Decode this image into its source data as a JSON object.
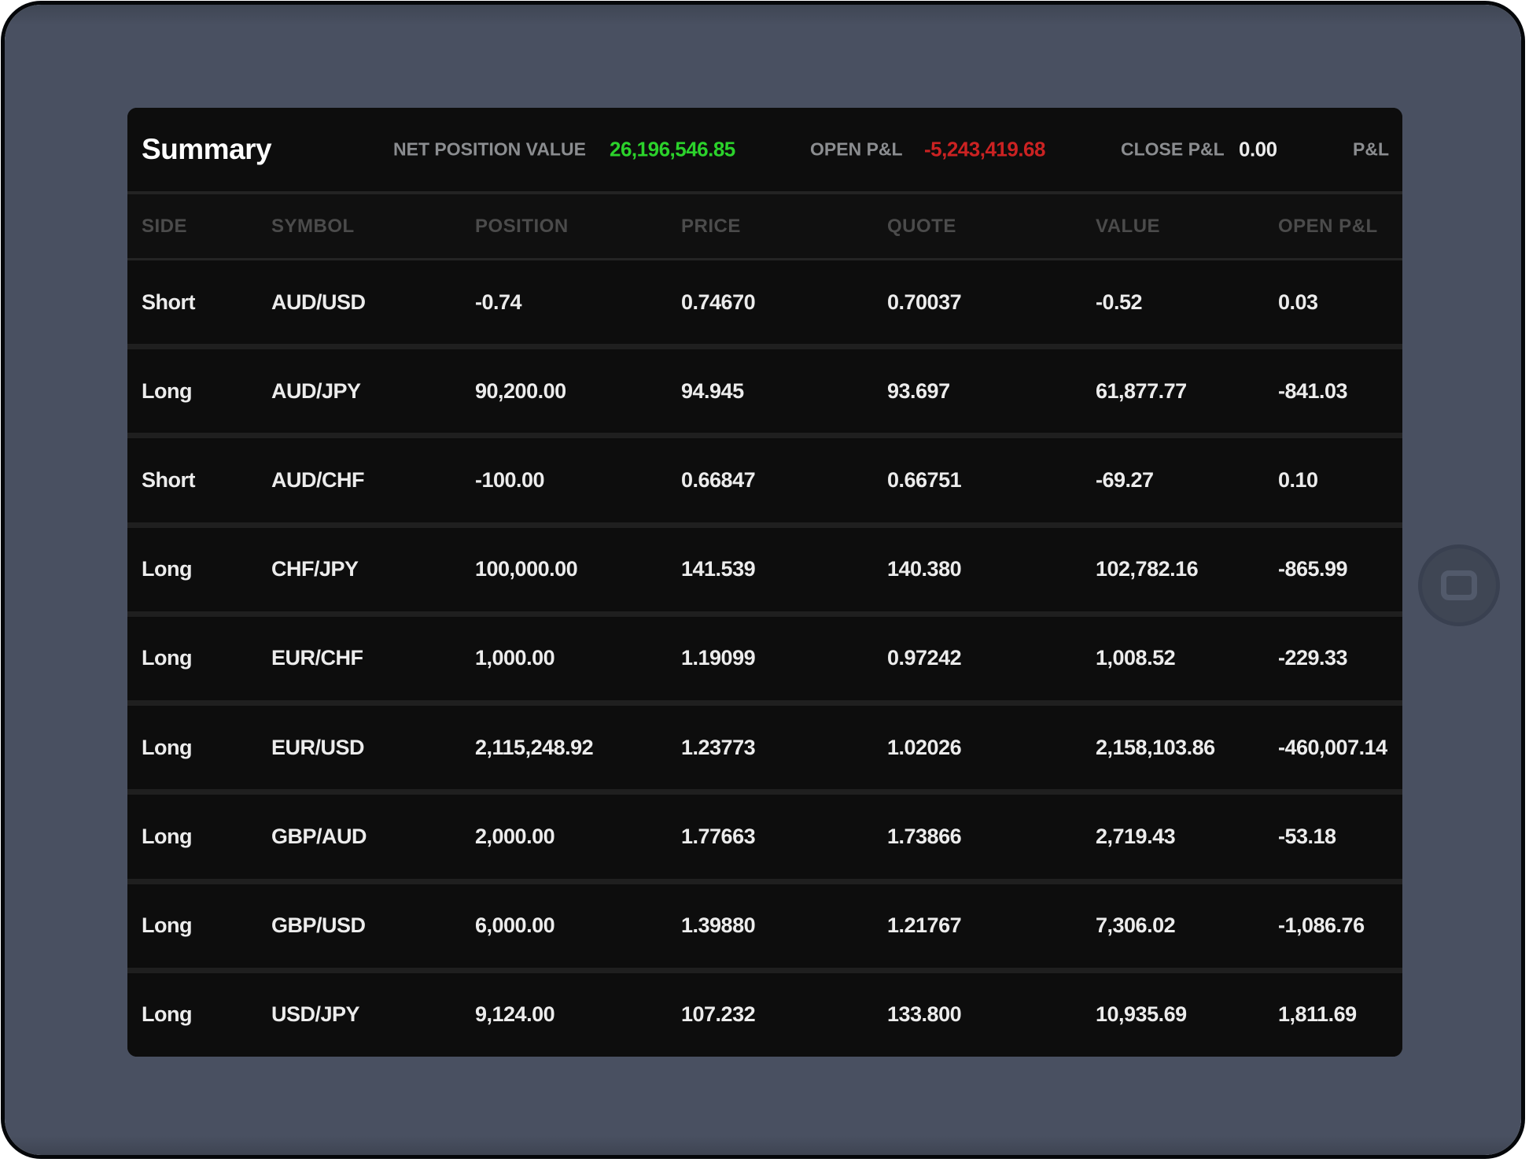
{
  "device": {
    "home_button_icon": "rounded-square-icon"
  },
  "header": {
    "title": "Summary",
    "stats": [
      {
        "label": "NET POSITION VALUE",
        "value": "26,196,546.85",
        "tone": "green"
      },
      {
        "label": "OPEN P&L",
        "value": "-5,243,419.68",
        "tone": "red"
      },
      {
        "label": "CLOSE P&L",
        "value": "0.00",
        "tone": "white"
      },
      {
        "label": "P&L",
        "value": "",
        "tone": "white"
      }
    ]
  },
  "table": {
    "columns": [
      "SIDE",
      "SYMBOL",
      "POSITION",
      "PRICE",
      "QUOTE",
      "VALUE",
      "OPEN P&L"
    ],
    "rows": [
      {
        "side": "Short",
        "symbol": "AUD/USD",
        "position": "-0.74",
        "position_tone": "red",
        "price": "0.74670",
        "quote": "0.70037",
        "value": "-0.52",
        "value_tone": "neutral",
        "open_pl": "0.03",
        "open_pl_tone": "green"
      },
      {
        "side": "Long",
        "symbol": "AUD/JPY",
        "position": "90,200.00",
        "position_tone": "green",
        "price": "94.945",
        "quote": "93.697",
        "value": "61,877.77",
        "value_tone": "neutral",
        "open_pl": "-841.03",
        "open_pl_tone": "red"
      },
      {
        "side": "Short",
        "symbol": "AUD/CHF",
        "position": "-100.00",
        "position_tone": "red",
        "price": "0.66847",
        "quote": "0.66751",
        "value": "-69.27",
        "value_tone": "neutral",
        "open_pl": "0.10",
        "open_pl_tone": "green"
      },
      {
        "side": "Long",
        "symbol": "CHF/JPY",
        "position": "100,000.00",
        "position_tone": "green",
        "price": "141.539",
        "quote": "140.380",
        "value": "102,782.16",
        "value_tone": "neutral",
        "open_pl": "-865.99",
        "open_pl_tone": "red"
      },
      {
        "side": "Long",
        "symbol": "EUR/CHF",
        "position": "1,000.00",
        "position_tone": "green",
        "price": "1.19099",
        "quote": "0.97242",
        "value": "1,008.52",
        "value_tone": "neutral",
        "open_pl": "-229.33",
        "open_pl_tone": "red"
      },
      {
        "side": "Long",
        "symbol": "EUR/USD",
        "position": "2,115,248.92",
        "position_tone": "green",
        "price": "1.23773",
        "quote": "1.02026",
        "value": "2,158,103.86",
        "value_tone": "neutral",
        "open_pl": "-460,007.14",
        "open_pl_tone": "red"
      },
      {
        "side": "Long",
        "symbol": "GBP/AUD",
        "position": "2,000.00",
        "position_tone": "green",
        "price": "1.77663",
        "quote": "1.73866",
        "value": "2,719.43",
        "value_tone": "neutral",
        "open_pl": "-53.18",
        "open_pl_tone": "red"
      },
      {
        "side": "Long",
        "symbol": "GBP/USD",
        "position": "6,000.00",
        "position_tone": "green",
        "price": "1.39880",
        "quote": "1.21767",
        "value": "7,306.02",
        "value_tone": "neutral",
        "open_pl": "-1,086.76",
        "open_pl_tone": "red"
      },
      {
        "side": "Long",
        "symbol": "USD/JPY",
        "position": "9,124.00",
        "position_tone": "green",
        "price": "107.232",
        "quote": "133.800",
        "value": "10,935.69",
        "value_tone": "neutral",
        "open_pl": "1,811.69",
        "open_pl_tone": "green"
      }
    ]
  },
  "colors": {
    "positive": "#2bd22b",
    "negative": "#cb2222",
    "bezel": "#495061",
    "screen_background": "#0b0b0b"
  }
}
